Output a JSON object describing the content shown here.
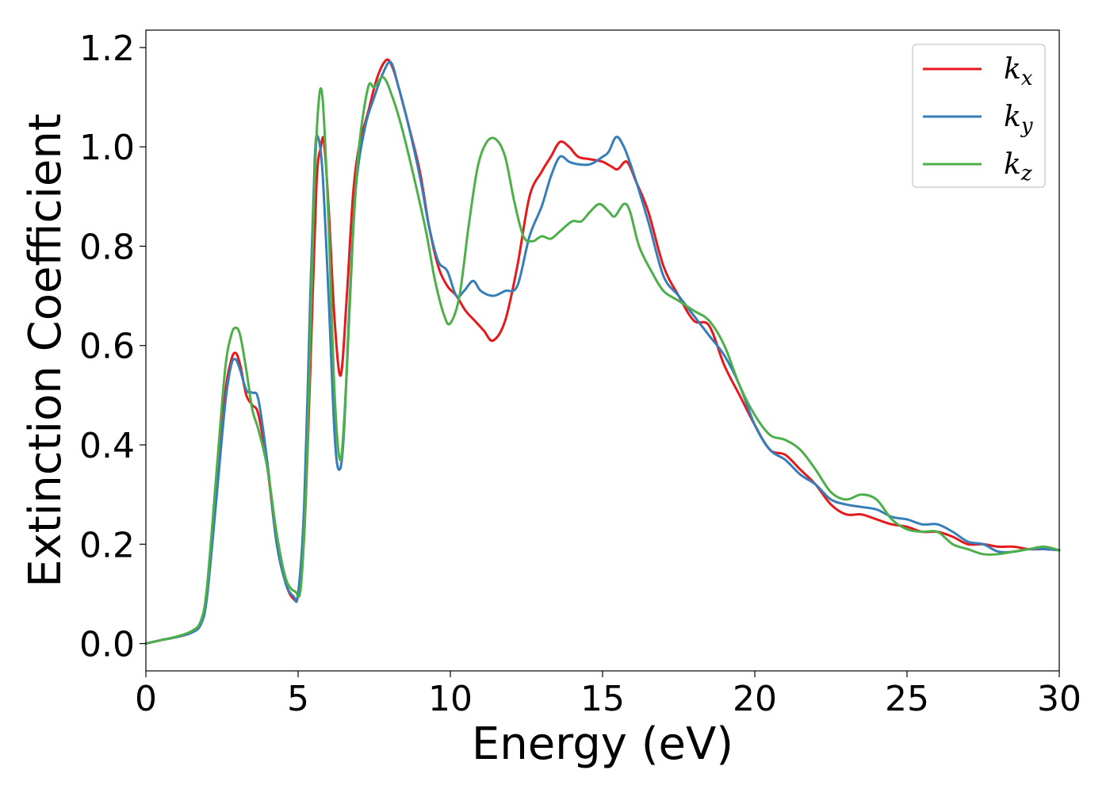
{
  "chart_data": {
    "type": "line",
    "xlabel": "Energy (eV)",
    "ylabel": "Extinction Coefficient",
    "xlim": [
      0,
      30
    ],
    "ylim": [
      -0.055,
      1.235
    ],
    "xticks": [
      0,
      5,
      10,
      15,
      20,
      25,
      30
    ],
    "yticks": [
      0.0,
      0.2,
      0.4,
      0.6,
      0.8,
      1.0,
      1.2
    ],
    "xtick_labels": [
      "0",
      "5",
      "10",
      "15",
      "20",
      "25",
      "30"
    ],
    "ytick_labels": [
      "0.0",
      "0.2",
      "0.4",
      "0.6",
      "0.8",
      "1.0",
      "1.2"
    ],
    "grid": false,
    "legend_position": "top-right",
    "series": [
      {
        "name": "k_x",
        "legend_main": "k",
        "legend_sub": "x",
        "color": "#e41a1c",
        "x": [
          0,
          0.5,
          1.0,
          1.5,
          1.8,
          2.0,
          2.3,
          2.6,
          2.8,
          2.95,
          3.1,
          3.3,
          3.5,
          3.7,
          4.0,
          4.3,
          4.6,
          4.85,
          5.0,
          5.2,
          5.4,
          5.6,
          5.75,
          5.85,
          6.0,
          6.2,
          6.4,
          6.6,
          6.8,
          7.0,
          7.3,
          7.6,
          7.9,
          8.1,
          8.3,
          8.6,
          9.0,
          9.3,
          9.6,
          9.9,
          10.2,
          10.5,
          10.8,
          11.1,
          11.4,
          11.8,
          12.2,
          12.6,
          13.0,
          13.3,
          13.6,
          13.9,
          14.2,
          14.6,
          15.0,
          15.3,
          15.5,
          15.8,
          16.1,
          16.5,
          17.0,
          17.5,
          18.0,
          18.5,
          19.0,
          19.5,
          20.0,
          20.5,
          21.0,
          21.5,
          22.0,
          22.5,
          23.0,
          23.5,
          24.0,
          24.5,
          25.0,
          25.5,
          26.0,
          26.5,
          27.0,
          27.5,
          28.0,
          28.5,
          29.0,
          29.5,
          30.0
        ],
        "y": [
          0.0,
          0.007,
          0.013,
          0.022,
          0.04,
          0.1,
          0.3,
          0.5,
          0.57,
          0.585,
          0.56,
          0.5,
          0.48,
          0.46,
          0.35,
          0.2,
          0.12,
          0.09,
          0.1,
          0.22,
          0.55,
          0.92,
          1.0,
          1.01,
          0.88,
          0.65,
          0.54,
          0.7,
          0.9,
          1.0,
          1.07,
          1.14,
          1.175,
          1.16,
          1.12,
          1.05,
          0.95,
          0.84,
          0.76,
          0.72,
          0.7,
          0.67,
          0.65,
          0.63,
          0.61,
          0.65,
          0.76,
          0.9,
          0.95,
          0.98,
          1.01,
          1.0,
          0.98,
          0.975,
          0.97,
          0.96,
          0.955,
          0.97,
          0.93,
          0.87,
          0.76,
          0.7,
          0.65,
          0.64,
          0.56,
          0.5,
          0.44,
          0.39,
          0.38,
          0.35,
          0.32,
          0.28,
          0.26,
          0.26,
          0.25,
          0.24,
          0.235,
          0.225,
          0.225,
          0.215,
          0.2,
          0.2,
          0.195,
          0.195,
          0.19,
          0.19,
          0.188
        ]
      },
      {
        "name": "k_y",
        "legend_main": "k",
        "legend_sub": "y",
        "color": "#377eb8",
        "x": [
          0,
          0.5,
          1.0,
          1.5,
          1.8,
          2.0,
          2.3,
          2.6,
          2.8,
          2.95,
          3.1,
          3.3,
          3.5,
          3.7,
          4.0,
          4.3,
          4.6,
          4.85,
          5.0,
          5.2,
          5.4,
          5.55,
          5.65,
          5.8,
          6.0,
          6.2,
          6.35,
          6.5,
          6.7,
          6.9,
          7.2,
          7.5,
          7.8,
          8.05,
          8.3,
          8.6,
          9.0,
          9.3,
          9.6,
          9.9,
          10.2,
          10.45,
          10.75,
          11.0,
          11.4,
          11.8,
          12.2,
          12.6,
          13.0,
          13.3,
          13.6,
          13.9,
          14.2,
          14.6,
          15.0,
          15.2,
          15.45,
          15.7,
          16.0,
          16.5,
          17.0,
          17.5,
          18.0,
          18.5,
          19.0,
          19.5,
          20.0,
          20.5,
          21.0,
          21.5,
          22.0,
          22.5,
          23.0,
          23.5,
          24.0,
          24.5,
          25.0,
          25.5,
          26.0,
          26.5,
          27.0,
          27.5,
          28.0,
          28.5,
          29.0,
          29.5,
          30.0
        ],
        "y": [
          0.0,
          0.007,
          0.013,
          0.022,
          0.038,
          0.09,
          0.28,
          0.48,
          0.56,
          0.572,
          0.55,
          0.51,
          0.505,
          0.49,
          0.36,
          0.2,
          0.12,
          0.095,
          0.1,
          0.28,
          0.7,
          0.98,
          1.02,
          0.95,
          0.7,
          0.42,
          0.35,
          0.42,
          0.7,
          0.92,
          1.04,
          1.1,
          1.15,
          1.17,
          1.12,
          1.05,
          0.94,
          0.84,
          0.77,
          0.75,
          0.7,
          0.71,
          0.73,
          0.71,
          0.7,
          0.71,
          0.72,
          0.82,
          0.88,
          0.94,
          0.98,
          0.97,
          0.965,
          0.965,
          0.98,
          0.99,
          1.02,
          1.0,
          0.95,
          0.85,
          0.74,
          0.7,
          0.66,
          0.62,
          0.58,
          0.52,
          0.44,
          0.39,
          0.37,
          0.34,
          0.32,
          0.29,
          0.28,
          0.275,
          0.27,
          0.255,
          0.25,
          0.24,
          0.24,
          0.225,
          0.205,
          0.2,
          0.185,
          0.185,
          0.19,
          0.19,
          0.188
        ]
      },
      {
        "name": "k_z",
        "legend_main": "k",
        "legend_sub": "z",
        "color": "#4daf4a",
        "x": [
          0,
          0.5,
          1.0,
          1.5,
          1.8,
          2.0,
          2.3,
          2.6,
          2.8,
          2.95,
          3.1,
          3.3,
          3.5,
          3.7,
          4.0,
          4.3,
          4.6,
          4.9,
          5.1,
          5.3,
          5.5,
          5.65,
          5.8,
          6.0,
          6.2,
          6.4,
          6.6,
          6.8,
          7.0,
          7.3,
          7.5,
          7.8,
          8.1,
          8.4,
          8.8,
          9.2,
          9.5,
          9.8,
          10.0,
          10.3,
          10.6,
          10.9,
          11.2,
          11.5,
          11.8,
          12.1,
          12.4,
          12.7,
          13.0,
          13.3,
          13.6,
          14.0,
          14.3,
          14.6,
          14.9,
          15.2,
          15.4,
          15.7,
          15.9,
          16.2,
          16.6,
          17.0,
          17.5,
          18.0,
          18.5,
          19.0,
          19.5,
          20.0,
          20.5,
          21.0,
          21.5,
          22.0,
          22.5,
          23.0,
          23.5,
          24.0,
          24.5,
          25.0,
          25.5,
          26.0,
          26.5,
          27.0,
          27.5,
          28.0,
          28.5,
          29.0,
          29.5,
          30.0
        ],
        "y": [
          0.0,
          0.007,
          0.014,
          0.025,
          0.045,
          0.11,
          0.33,
          0.55,
          0.62,
          0.636,
          0.62,
          0.55,
          0.47,
          0.43,
          0.35,
          0.22,
          0.13,
          0.105,
          0.12,
          0.38,
          0.85,
          1.07,
          1.1,
          0.85,
          0.5,
          0.37,
          0.55,
          0.82,
          1.0,
          1.12,
          1.12,
          1.14,
          1.1,
          1.04,
          0.94,
          0.83,
          0.73,
          0.66,
          0.645,
          0.7,
          0.84,
          0.96,
          1.01,
          1.015,
          0.98,
          0.89,
          0.82,
          0.81,
          0.82,
          0.815,
          0.83,
          0.85,
          0.85,
          0.87,
          0.885,
          0.87,
          0.86,
          0.885,
          0.87,
          0.8,
          0.75,
          0.71,
          0.69,
          0.67,
          0.65,
          0.6,
          0.52,
          0.46,
          0.42,
          0.41,
          0.39,
          0.35,
          0.305,
          0.29,
          0.3,
          0.29,
          0.25,
          0.23,
          0.225,
          0.225,
          0.2,
          0.19,
          0.18,
          0.18,
          0.185,
          0.19,
          0.195,
          0.188
        ]
      }
    ]
  }
}
